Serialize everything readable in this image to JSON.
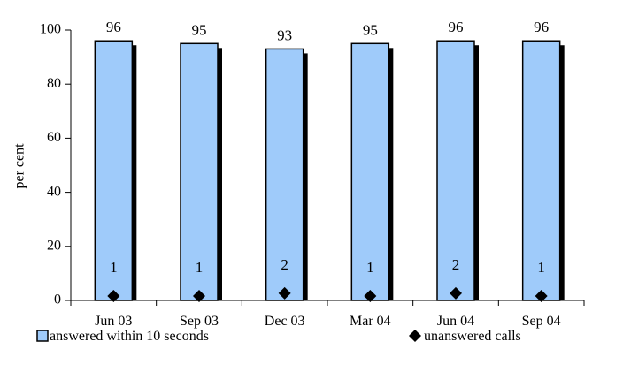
{
  "chart_data": {
    "type": "bar",
    "categories": [
      "Jun 03",
      "Sep 03",
      "Dec 03",
      "Mar 04",
      "Jun 04",
      "Sep 04"
    ],
    "series": [
      {
        "name": "answered within 10 seconds",
        "kind": "bar",
        "values": [
          96,
          95,
          93,
          95,
          96,
          96
        ],
        "color": "#9fcbfa",
        "shadow_color": "#000000"
      },
      {
        "name": "unanswered calls",
        "kind": "marker",
        "marker": "diamond",
        "values": [
          1,
          1,
          2,
          1,
          2,
          1
        ],
        "color": "#000000"
      }
    ],
    "title": "",
    "xlabel": "",
    "ylabel": "per cent",
    "ylim": [
      0,
      100
    ],
    "yticks": [
      0,
      20,
      40,
      60,
      80,
      100
    ],
    "grid": false,
    "legend": "bottom"
  }
}
